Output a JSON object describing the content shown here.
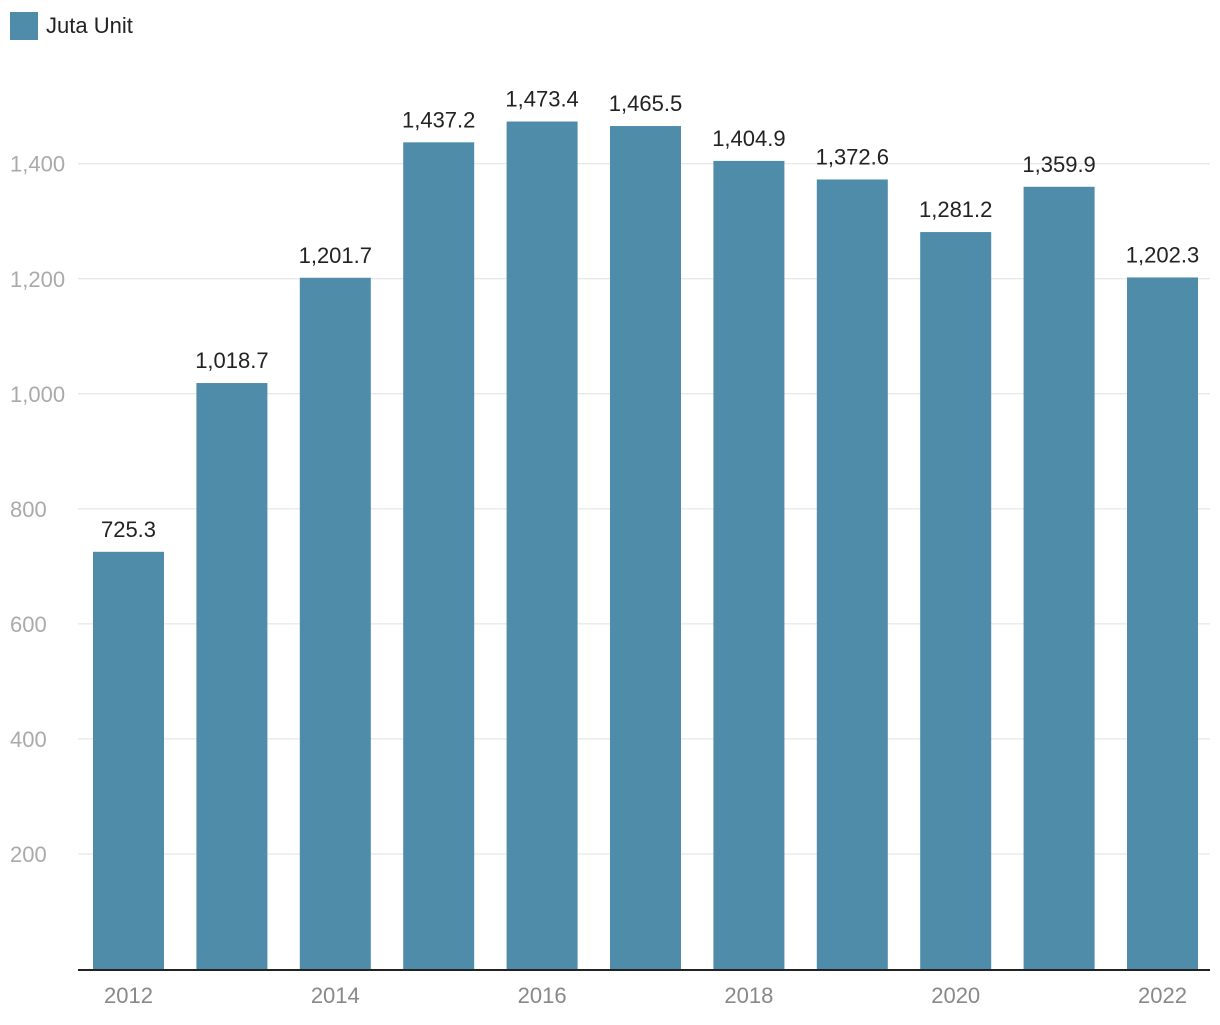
{
  "chart_data": {
    "type": "bar",
    "categories": [
      "2012",
      "2013",
      "2014",
      "2015",
      "2016",
      "2017",
      "2018",
      "2019",
      "2020",
      "2021",
      "2022"
    ],
    "series": [
      {
        "name": "Juta Unit",
        "values": [
          725.3,
          1018.7,
          1201.7,
          1437.2,
          1473.4,
          1465.5,
          1404.9,
          1372.6,
          1281.2,
          1359.9,
          1202.3
        ]
      }
    ],
    "data_labels": [
      "725.3",
      "1,018.7",
      "1,201.7",
      "1,437.2",
      "1,473.4",
      "1,465.5",
      "1,404.9",
      "1,372.6",
      "1,281.2",
      "1,359.9",
      "1,202.3"
    ],
    "x_tick_labels": [
      "2012",
      "",
      "2014",
      "",
      "2016",
      "",
      "2018",
      "",
      "2020",
      "",
      "2022"
    ],
    "y_ticks": [
      200,
      400,
      600,
      800,
      1000,
      1200,
      1400
    ],
    "y_tick_labels": [
      "200",
      "400",
      "600",
      "800",
      "1,000",
      "1,200",
      "1,400"
    ],
    "ylim": [
      0,
      1400
    ],
    "grid": true,
    "legend_position": "top-left",
    "colors": {
      "bar": "#4e8caa",
      "grid": "#e0e0e0",
      "axis": "#222222",
      "tick_text": "#aaaaaa",
      "xtick_text": "#888888",
      "label_text": "#222222"
    }
  }
}
